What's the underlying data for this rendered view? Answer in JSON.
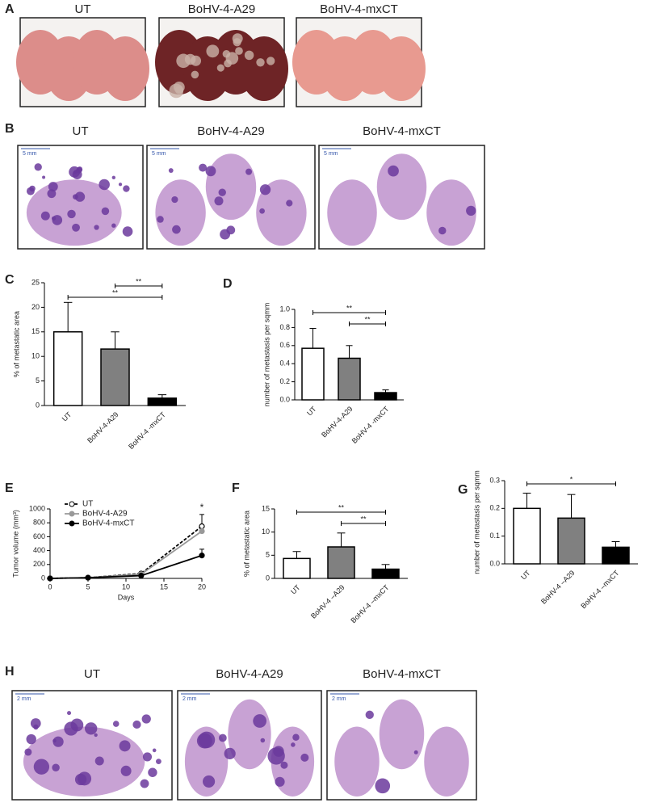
{
  "panels": {
    "A": {
      "label": "A",
      "images": [
        "UT",
        "BoHV-4-A29",
        "BoHV-4-mxCT"
      ]
    },
    "B": {
      "label": "B",
      "images": [
        "UT",
        "BoHV-4-A29",
        "BoHV-4-mxCT"
      ],
      "scale": "5 mm"
    },
    "H": {
      "label": "H",
      "images": [
        "UT",
        "BoHV-4-A29",
        "BoHV-4-mxCT"
      ],
      "scale": "2 mm"
    }
  },
  "chart_data": [
    {
      "type": "bar",
      "label": "C",
      "y_label": "% of metastatic area",
      "categories": [
        "UT",
        "BoHV-4-A29",
        "BoHV-4 -mxCT"
      ],
      "values": [
        15,
        11.5,
        1.5
      ],
      "errors": [
        6,
        3.5,
        0.7
      ],
      "colors": [
        "#ffffff",
        "#808080",
        "#000000"
      ],
      "ylim": [
        0,
        25
      ],
      "yticks": [
        0,
        5,
        10,
        15,
        20,
        25
      ],
      "annotations": [
        {
          "text": "**",
          "between": [
            "BoHV-4-A29",
            "BoHV-4 -mxCT"
          ]
        },
        {
          "text": "**",
          "between": [
            "UT",
            "BoHV-4 -mxCT"
          ]
        }
      ]
    },
    {
      "type": "bar",
      "label": "D",
      "y_label": "number of metastasis per sqmm",
      "categories": [
        "UT",
        "BoHV-4-A29",
        "BoHV-4 -mxCT"
      ],
      "values": [
        0.57,
        0.46,
        0.08
      ],
      "errors": [
        0.22,
        0.14,
        0.03
      ],
      "colors": [
        "#ffffff",
        "#808080",
        "#000000"
      ],
      "ylim": [
        0,
        1
      ],
      "yticks": [
        {
          "value": 0,
          "label": "0.0"
        },
        0.2,
        0.4,
        0.6,
        0.8,
        {
          "value": 1,
          "label": "1.0"
        }
      ],
      "annotations": [
        {
          "text": "**",
          "between": [
            "UT",
            "BoHV-4 -mxCT"
          ]
        },
        {
          "text": "**",
          "between": [
            "BoHV-4-A29",
            "BoHV-4 -mxCT"
          ]
        }
      ]
    },
    {
      "type": "line",
      "label": "E",
      "y_label": "Tumor volume (mm³)",
      "x_label": "Days",
      "x": [
        0,
        5,
        12,
        20
      ],
      "xlim": [
        0,
        20
      ],
      "xticks": [
        0,
        5,
        10,
        15,
        20
      ],
      "ylim": [
        0,
        1000
      ],
      "yticks": [
        0,
        200,
        400,
        600,
        800,
        1000
      ],
      "series": [
        {
          "name": "UT",
          "color": "#000000",
          "marker_fill": "#ffffff",
          "dashed": true,
          "values": [
            0,
            10,
            70,
            750
          ],
          "errors": [
            null,
            null,
            null,
            170
          ]
        },
        {
          "name": "BoHV-4-A29",
          "color": "#999999",
          "marker_fill": "#999999",
          "dashed": false,
          "values": [
            0,
            10,
            60,
            680
          ],
          "errors": [
            null,
            null,
            null,
            null
          ]
        },
        {
          "name": "BoHV-4-mxCT",
          "color": "#000000",
          "marker_fill": "#000000",
          "dashed": false,
          "values": [
            0,
            10,
            40,
            330
          ],
          "errors": [
            null,
            null,
            null,
            90
          ]
        }
      ],
      "annotation": "*"
    },
    {
      "type": "bar",
      "label": "F",
      "y_label": "% of metastatic area",
      "categories": [
        "UT",
        "BoHV-4 –A29",
        "BoHV-4 –mxCT"
      ],
      "values": [
        4.3,
        6.8,
        2
      ],
      "errors": [
        1.5,
        3,
        1
      ],
      "colors": [
        "#ffffff",
        "#808080",
        "#000000"
      ],
      "ylim": [
        0,
        15
      ],
      "yticks": [
        0,
        5,
        10,
        15
      ],
      "annotations": [
        {
          "text": "**",
          "between": [
            "UT",
            "BoHV-4 –mxCT"
          ]
        },
        {
          "text": "**",
          "between": [
            "BoHV-4 –A29",
            "BoHV-4 –mxCT"
          ]
        }
      ]
    },
    {
      "type": "bar",
      "label": "G",
      "y_label": "number of metastasis per sqmm",
      "categories": [
        "UT",
        "BoHV-4 –A29",
        "BoHV-4 –mxCT"
      ],
      "values": [
        0.2,
        0.165,
        0.06
      ],
      "errors": [
        0.055,
        0.085,
        0.02
      ],
      "colors": [
        "#ffffff",
        "#808080",
        "#000000"
      ],
      "ylim": [
        0,
        0.3
      ],
      "yticks": [
        {
          "value": 0,
          "label": "0.0"
        },
        0.1,
        0.2,
        0.3
      ],
      "annotations": [
        {
          "text": "*",
          "between": [
            "UT",
            "BoHV-4 –mxCT"
          ]
        }
      ]
    }
  ]
}
